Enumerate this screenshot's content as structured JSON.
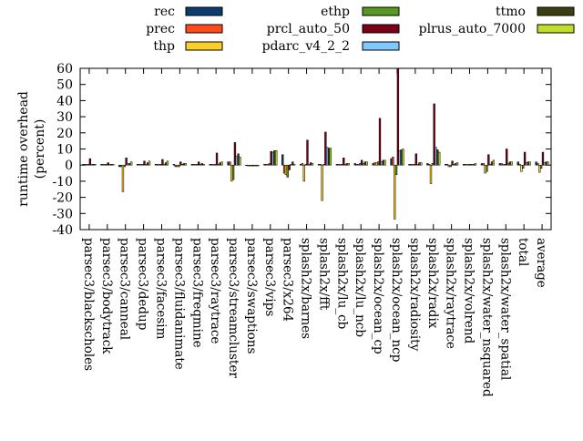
{
  "chart_data": {
    "type": "bar",
    "ylabel": "runtime overhead\n(percent)",
    "ylim": [
      -40,
      60
    ],
    "yticks": [
      -40,
      -30,
      -20,
      -10,
      0,
      10,
      20,
      30,
      40,
      50,
      60
    ],
    "grid": false,
    "legend_placement": "top",
    "categories": [
      "parsec3/blackscholes",
      "parsec3/bodytrack",
      "parsec3/canneal",
      "parsec3/dedup",
      "parsec3/facesim",
      "parsec3/fluidanimate",
      "parsec3/freqmine",
      "parsec3/raytrace",
      "parsec3/streamcluster",
      "parsec3/swaptions",
      "parsec3/vips",
      "parsec3/x264",
      "splash2x/barnes",
      "splash2x/fft",
      "splash2x/lu_cb",
      "splash2x/lu_ncb",
      "splash2x/ocean_cp",
      "splash2x/ocean_ncp",
      "splash2x/radiosity",
      "splash2x/radix",
      "splash2x/raytrace",
      "splash2x/volrend",
      "splash2x/water_nsquared",
      "splash2x/water_spatial",
      "total",
      "average"
    ],
    "series": [
      {
        "name": "rec",
        "color": "#0b3d6e",
        "values": [
          0.5,
          0.5,
          -1,
          0.5,
          0.5,
          0.5,
          0.5,
          0.5,
          2,
          0,
          0.5,
          6.5,
          0.5,
          0.5,
          0.5,
          1,
          1,
          4,
          0.5,
          1,
          0.5,
          0.5,
          1,
          1,
          2,
          2
        ]
      },
      {
        "name": "prec",
        "color": "#ff4a1c",
        "values": [
          0.5,
          0.5,
          -1,
          0.5,
          0.5,
          -1,
          0.5,
          0.5,
          2,
          -0.5,
          0.5,
          -5,
          1,
          0.5,
          0.5,
          0.5,
          1.5,
          5,
          0.5,
          0.5,
          0.5,
          0.5,
          1,
          1,
          0.5,
          1
        ]
      },
      {
        "name": "thp",
        "color": "#ffcf29",
        "values": [
          0.5,
          0.5,
          -16.5,
          0.5,
          0.5,
          -1,
          0.5,
          0.5,
          -10,
          -0.5,
          0.5,
          -6,
          -10,
          -22,
          0.5,
          0.5,
          1.5,
          -33.5,
          0.5,
          -11.5,
          -1,
          0.5,
          -5,
          0.5,
          -4,
          -4.5
        ]
      },
      {
        "name": "ethp",
        "color": "#579a22",
        "values": [
          0.5,
          0.5,
          -1,
          0.5,
          0.5,
          -1,
          0.5,
          0.5,
          -9,
          -0.5,
          1,
          -7.5,
          0.5,
          0.5,
          0.5,
          1,
          2,
          -6,
          0.5,
          1,
          -1,
          0.5,
          -4,
          0.5,
          -2,
          -2
        ]
      },
      {
        "name": "prcl_auto_50",
        "color": "#7a0018",
        "values": [
          4,
          1.5,
          4.5,
          2.5,
          3.5,
          2,
          2,
          7.5,
          14,
          -0.5,
          8.5,
          -3,
          15.5,
          20.5,
          4.5,
          3,
          29,
          60,
          7,
          38,
          2.5,
          0.5,
          6.5,
          10,
          8,
          8
        ]
      },
      {
        "name": "pdarc_v4_2_2",
        "color": "#7dc8ff",
        "values": [
          0.5,
          0.5,
          1,
          0.5,
          0.5,
          0.5,
          0.5,
          0.5,
          5.5,
          -0.5,
          8,
          0.5,
          0.5,
          11,
          0.5,
          1,
          2,
          9,
          0.5,
          11,
          0.5,
          0.5,
          0.5,
          1,
          1.5,
          1.5
        ]
      },
      {
        "name": "ttmo",
        "color": "#3d3f0f",
        "values": [
          0.5,
          0.5,
          1,
          1.5,
          1.5,
          1,
          1,
          1.5,
          7,
          -0.5,
          9,
          2,
          1.5,
          10.5,
          1,
          2,
          3,
          9.5,
          1.5,
          9.5,
          1,
          0.5,
          2,
          2,
          2,
          2
        ]
      },
      {
        "name": "plrus_auto_7000",
        "color": "#bfde2a",
        "values": [
          0.5,
          0.5,
          2,
          2.5,
          2.5,
          1,
          0.5,
          2,
          5,
          -0.5,
          9,
          0.5,
          1,
          10.5,
          1,
          2,
          3,
          10,
          1.5,
          8,
          1.5,
          1,
          3,
          2,
          2,
          2
        ]
      }
    ]
  }
}
